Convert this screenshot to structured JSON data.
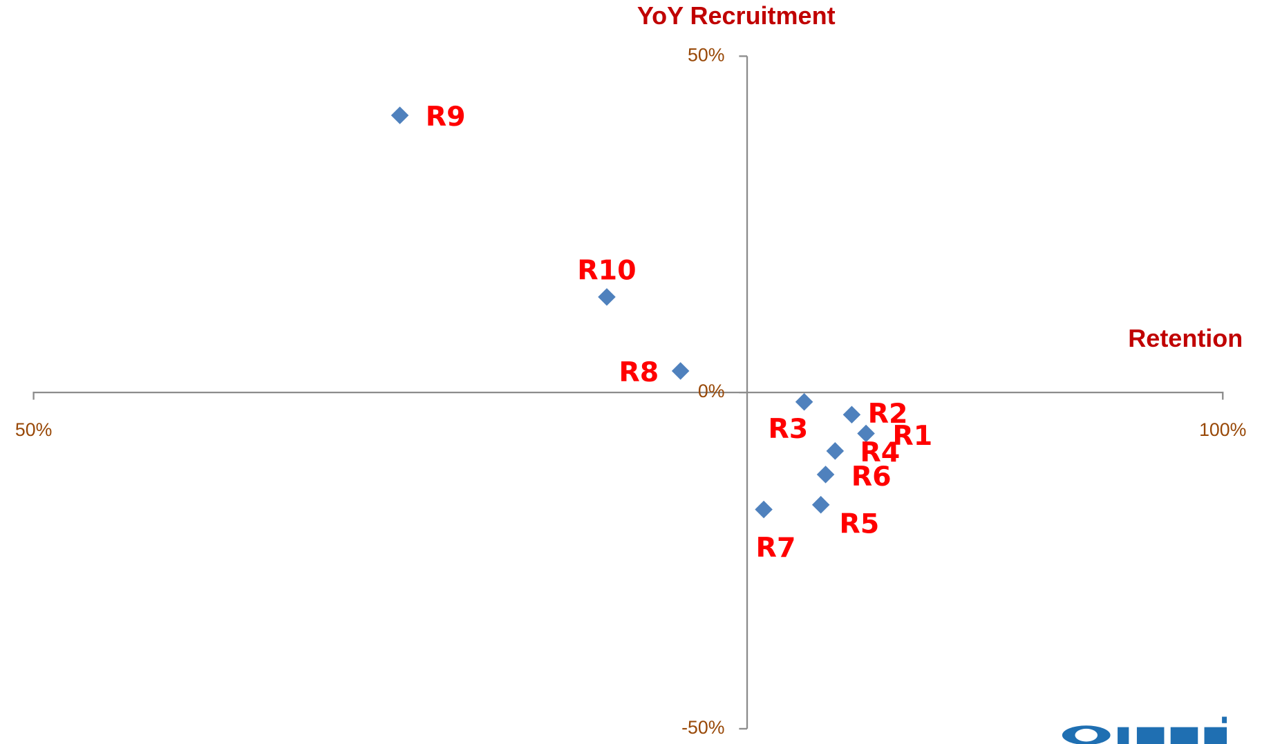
{
  "chart_data": {
    "type": "scatter",
    "x_label": "Retention",
    "y_label": "YoY Recruitment",
    "labels": [
      "R9",
      "R10",
      "R8",
      "R3",
      "R2",
      "R1",
      "R4",
      "R6",
      "R5",
      "R7"
    ],
    "x": [
      65.4,
      74.1,
      77.2,
      82.4,
      84.4,
      85.0,
      83.7,
      83.3,
      83.1,
      80.7
    ],
    "y": [
      41.2,
      14.2,
      3.2,
      -1.4,
      -3.3,
      -6.1,
      -8.7,
      -12.2,
      -16.7,
      -17.4
    ],
    "color": "#4f81bd",
    "xlim": [
      50,
      100
    ],
    "ylim": [
      -50,
      50
    ],
    "xticks": [
      {
        "value": 50,
        "label": "50%"
      },
      {
        "value": 100,
        "label": "100%"
      }
    ],
    "yticks": [
      {
        "value": 50,
        "label": "50%"
      },
      {
        "value": 0,
        "label": "0%"
      },
      {
        "value": -50,
        "label": "-50%"
      }
    ],
    "y_axis_at": 80,
    "x_axis_at": 0
  }
}
